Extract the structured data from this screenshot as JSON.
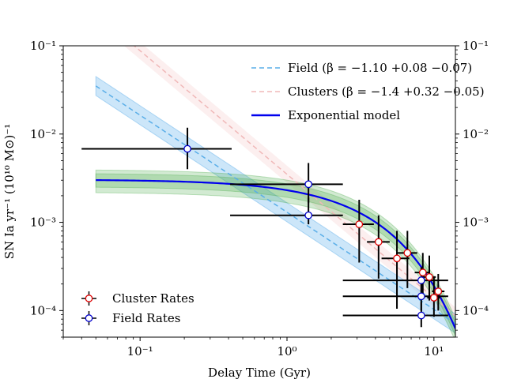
{
  "chart_data": {
    "type": "scatter",
    "xlabel": "Delay Time (Gyr)",
    "ylabel": "SN Ia yr⁻¹ (10¹⁰ M⊙)⁻¹",
    "xscale": "log",
    "yscale": "log",
    "xlim": [
      0.03,
      14
    ],
    "ylim": [
      5e-05,
      0.1
    ],
    "x_ticks": [
      {
        "value": 0.1,
        "label": "10⁻¹"
      },
      {
        "value": 1,
        "label": "10⁰"
      },
      {
        "value": 10,
        "label": "10¹"
      }
    ],
    "y_ticks": [
      {
        "value": 0.0001,
        "label": "10⁻⁴"
      },
      {
        "value": 0.001,
        "label": "10⁻³"
      },
      {
        "value": 0.01,
        "label": "10⁻²"
      },
      {
        "value": 0.1,
        "label": "10⁻¹"
      }
    ],
    "right_y_axis_ticks": true,
    "grid": false,
    "legend_upper": {
      "placement": "top-right",
      "entries": [
        {
          "label": "Field (β = −1.10 +0.08 −0.07)",
          "style": "dashed",
          "color": "#5aaee8"
        },
        {
          "label": "Clusters (β = −1.4 +0.32 −0.05)",
          "style": "dashed",
          "color": "#f0b8b8"
        },
        {
          "label": "Exponential model",
          "style": "solid",
          "color": "#0000ee"
        }
      ]
    },
    "legend_lower": {
      "placement": "bottom-left",
      "entries": [
        {
          "label": "Cluster Rates",
          "marker_edge": "#dd0000"
        },
        {
          "label": "Field Rates",
          "marker_edge": "#0000cc"
        }
      ]
    },
    "models": {
      "field_power_law": {
        "norm_at_1gyr": 0.0013,
        "beta": -1.1,
        "band": [
          0.78,
          1.28
        ],
        "x_range": [
          0.05,
          14
        ],
        "color": "#5aaee8"
      },
      "cluster_power_law": {
        "norm_at_1gyr": 0.0035,
        "beta": -1.4,
        "band": [
          0.8,
          1.25
        ],
        "x_range": [
          0.05,
          14
        ],
        "color": "#f0b8b8"
      },
      "exponential_model": {
        "amplitude": 0.00305,
        "tau_gyr": 3.6,
        "bands": [
          [
            0.83,
            1.18
          ],
          [
            0.72,
            1.3
          ]
        ],
        "x_range": [
          0.05,
          14
        ],
        "color": "#0000ee",
        "band_color": "#4cab4c"
      }
    },
    "series": [
      {
        "name": "Field Rates",
        "marker_edge": "#0000cc",
        "points": [
          {
            "x": 0.21,
            "y": 0.0068,
            "xerr": [
              0.04,
              0.42
            ],
            "yerr": [
              0.004,
              0.0118
            ]
          },
          {
            "x": 1.4,
            "y": 0.0027,
            "xerr": [
              0.41,
              2.4
            ],
            "yerr": [
              0.00165,
              0.0047
            ]
          },
          {
            "x": 1.4,
            "y": 0.0012,
            "xerr": [
              0.41,
              2.4
            ],
            "yerr": [
              0.00095,
              0.0019
            ]
          },
          {
            "x": 8.2,
            "y": 0.00022,
            "xerr": [
              2.4,
              12.5
            ],
            "yerr": [
              0.00016,
              0.00031
            ]
          },
          {
            "x": 8.2,
            "y": 0.000145,
            "xerr": [
              2.4,
              12.5
            ],
            "yerr": [
              0.0001,
              0.0002
            ]
          },
          {
            "x": 8.2,
            "y": 8.8e-05,
            "xerr": [
              2.4,
              12.5
            ],
            "yerr": [
              6.5e-05,
              0.000125
            ]
          }
        ]
      },
      {
        "name": "Cluster Rates",
        "marker_edge": "#dd0000",
        "points": [
          {
            "x": 3.1,
            "y": 0.00095,
            "xerr": [
              2.4,
              3.9
            ],
            "yerr": [
              0.00035,
              0.0018
            ]
          },
          {
            "x": 4.2,
            "y": 0.0006,
            "xerr": [
              3.5,
              5.0
            ],
            "yerr": [
              0.00023,
              0.0012
            ]
          },
          {
            "x": 5.6,
            "y": 0.00039,
            "xerr": [
              4.4,
              6.8
            ],
            "yerr": [
              0.000105,
              0.0008
            ]
          },
          {
            "x": 6.6,
            "y": 0.00045,
            "xerr": [
              5.6,
              7.7
            ],
            "yerr": [
              0.00018,
              0.0008
            ]
          },
          {
            "x": 8.4,
            "y": 0.00027,
            "xerr": [
              7.4,
              9.4
            ],
            "yerr": [
              0.00015,
              0.00045
            ]
          },
          {
            "x": 9.3,
            "y": 0.00024,
            "xerr": [
              8.4,
              10.3
            ],
            "yerr": [
              0.00013,
              0.00042
            ]
          },
          {
            "x": 10.0,
            "y": 0.00014,
            "xerr": [
              9.0,
              11.0
            ],
            "yerr": [
              8.5e-05,
              0.00024
            ]
          },
          {
            "x": 10.7,
            "y": 0.000165,
            "xerr": [
              9.7,
              11.8
            ],
            "yerr": [
              0.0001,
              0.00026
            ]
          }
        ]
      }
    ]
  }
}
